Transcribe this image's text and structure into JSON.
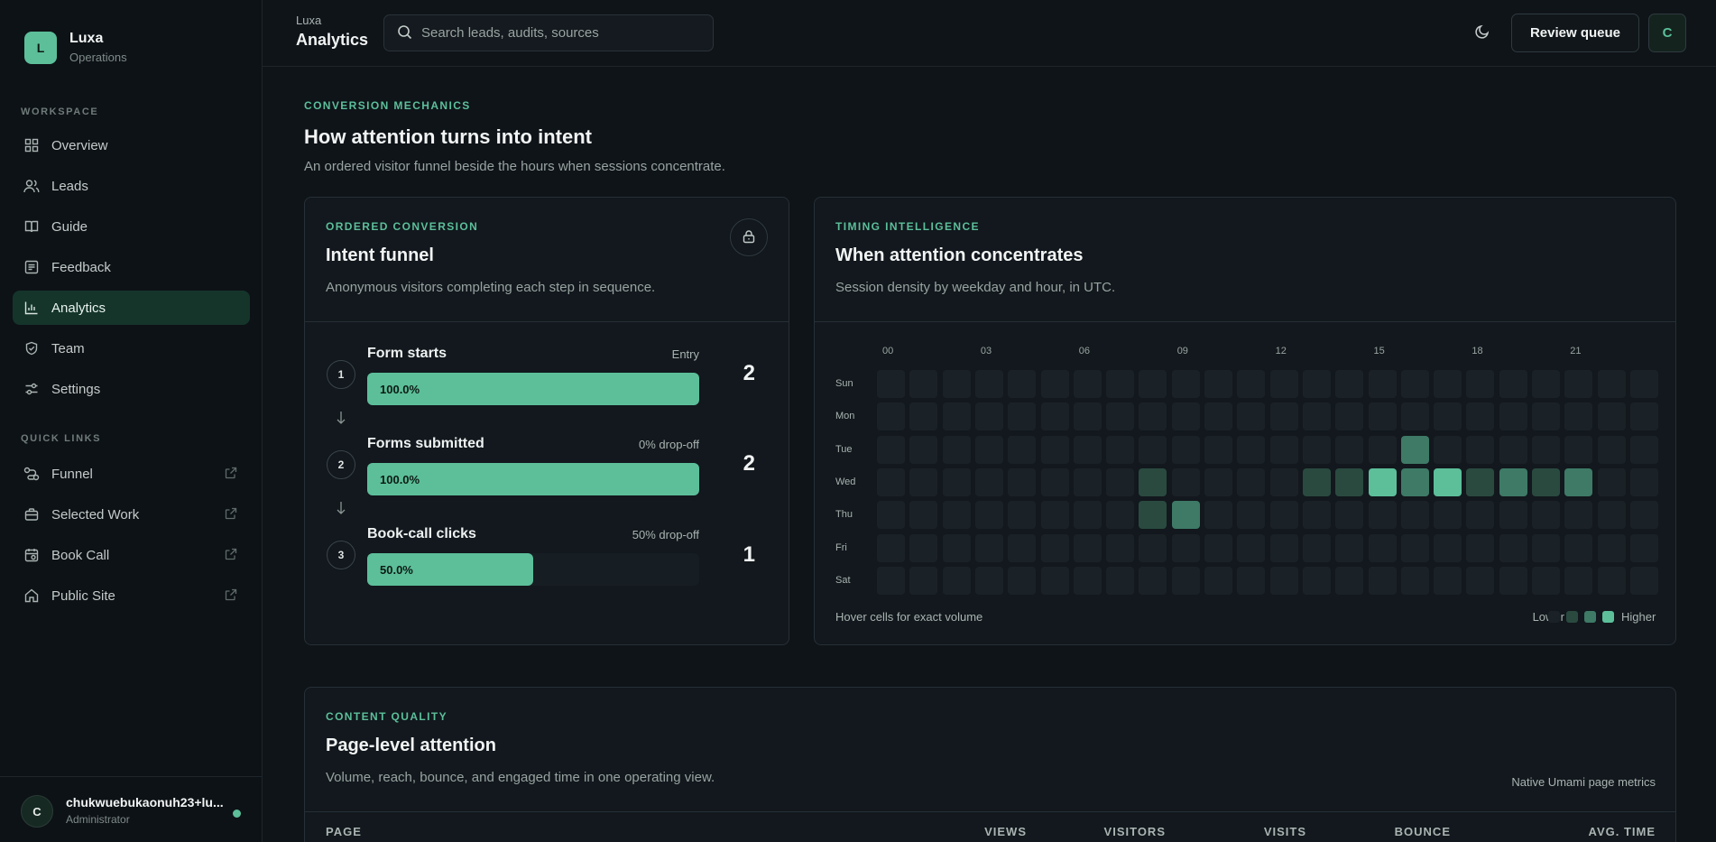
{
  "brand": {
    "logo": "L",
    "name": "Luxa",
    "subtitle": "Operations"
  },
  "sidebar": {
    "workspace_label": "WORKSPACE",
    "items": [
      {
        "label": "Overview",
        "icon": "grid-icon"
      },
      {
        "label": "Leads",
        "icon": "users-icon"
      },
      {
        "label": "Guide",
        "icon": "book-icon"
      },
      {
        "label": "Feedback",
        "icon": "message-icon"
      },
      {
        "label": "Analytics",
        "icon": "bar-chart-icon",
        "active": true
      },
      {
        "label": "Team",
        "icon": "shield-icon"
      },
      {
        "label": "Settings",
        "icon": "sliders-icon"
      }
    ],
    "quick_links_label": "QUICK LINKS",
    "quick_links": [
      {
        "label": "Funnel",
        "icon": "funnel-icon"
      },
      {
        "label": "Selected Work",
        "icon": "briefcase-icon"
      },
      {
        "label": "Book Call",
        "icon": "calendar-icon"
      },
      {
        "label": "Public Site",
        "icon": "home-icon"
      }
    ]
  },
  "user": {
    "initial": "C",
    "name": "chukwuebukaonuh23+lu...",
    "role": "Administrator",
    "status_color": "#5cbf9a"
  },
  "header": {
    "app": "Luxa",
    "title": "Analytics",
    "search_placeholder": "Search leads, audits, sources",
    "review_label": "Review queue",
    "avatar": "C"
  },
  "section": {
    "kicker": "CONVERSION MECHANICS",
    "title": "How attention turns into intent",
    "subtitle": "An ordered visitor funnel beside the hours when sessions concentrate."
  },
  "funnel": {
    "kicker": "ORDERED CONVERSION",
    "title": "Intent funnel",
    "subtitle": "Anonymous visitors completing each step in sequence.",
    "steps": [
      {
        "num": "1",
        "name": "Form starts",
        "meta": "Entry",
        "pct_label": "100.0%",
        "fraction": 1.0,
        "count": "2"
      },
      {
        "num": "2",
        "name": "Forms submitted",
        "meta": "0% drop-off",
        "pct_label": "100.0%",
        "fraction": 1.0,
        "count": "2"
      },
      {
        "num": "3",
        "name": "Book-call clicks",
        "meta": "50% drop-off",
        "pct_label": "50.0%",
        "fraction": 0.5,
        "count": "1"
      }
    ]
  },
  "timing": {
    "kicker": "TIMING INTELLIGENCE",
    "title": "When attention concentrates",
    "subtitle": "Session density by weekday and hour, in UTC.",
    "hour_labels": [
      "00",
      "03",
      "06",
      "09",
      "12",
      "15",
      "18",
      "21"
    ],
    "days": [
      "Sun",
      "Mon",
      "Tue",
      "Wed",
      "Thu",
      "Fri",
      "Sat"
    ],
    "hint": "Hover cells for exact volume",
    "legend_low": "Lower",
    "legend_high": "Higher",
    "colors": [
      "#1b2227",
      "#2a4a3f",
      "#3e7a66",
      "#5cbf9a"
    ]
  },
  "chart_data": {
    "type": "heatmap",
    "title": "When attention concentrates",
    "x": [
      "00",
      "01",
      "02",
      "03",
      "04",
      "05",
      "06",
      "07",
      "08",
      "09",
      "10",
      "11",
      "12",
      "13",
      "14",
      "15",
      "16",
      "17",
      "18",
      "19",
      "20",
      "21",
      "22",
      "23"
    ],
    "y": [
      "Sun",
      "Mon",
      "Tue",
      "Wed",
      "Thu",
      "Fri",
      "Sat"
    ],
    "values": [
      [
        0,
        0,
        0,
        0,
        0,
        0,
        0,
        0,
        0,
        0,
        0,
        0,
        0,
        0,
        0,
        0,
        0,
        0,
        0,
        0,
        0,
        0,
        0,
        0
      ],
      [
        0,
        0,
        0,
        0,
        0,
        0,
        0,
        0,
        0,
        0,
        0,
        0,
        0,
        0,
        0,
        0,
        0,
        0,
        0,
        0,
        0,
        0,
        0,
        0
      ],
      [
        0,
        0,
        0,
        0,
        0,
        0,
        0,
        0,
        0,
        0,
        0,
        0,
        0,
        0,
        0,
        0,
        2,
        0,
        0,
        0,
        0,
        0,
        0,
        0
      ],
      [
        0,
        0,
        0,
        0,
        0,
        0,
        0,
        0,
        1,
        0,
        0,
        0,
        0,
        1,
        1,
        3,
        2,
        3,
        1,
        2,
        1,
        2,
        0,
        0
      ],
      [
        0,
        0,
        0,
        0,
        0,
        0,
        0,
        0,
        1,
        2,
        0,
        0,
        0,
        0,
        0,
        0,
        0,
        0,
        0,
        0,
        0,
        0,
        0,
        0
      ],
      [
        0,
        0,
        0,
        0,
        0,
        0,
        0,
        0,
        0,
        0,
        0,
        0,
        0,
        0,
        0,
        0,
        0,
        0,
        0,
        0,
        0,
        0,
        0,
        0
      ],
      [
        0,
        0,
        0,
        0,
        0,
        0,
        0,
        0,
        0,
        0,
        0,
        0,
        0,
        0,
        0,
        0,
        0,
        0,
        0,
        0,
        0,
        0,
        0,
        0
      ]
    ]
  },
  "content": {
    "kicker": "CONTENT QUALITY",
    "title": "Page-level attention",
    "subtitle": "Volume, reach, bounce, and engaged time in one operating view.",
    "note": "Native Umami page metrics",
    "columns": [
      "PAGE",
      "VIEWS",
      "VISITORS",
      "VISITS",
      "BOUNCE",
      "AVG. TIME"
    ]
  }
}
